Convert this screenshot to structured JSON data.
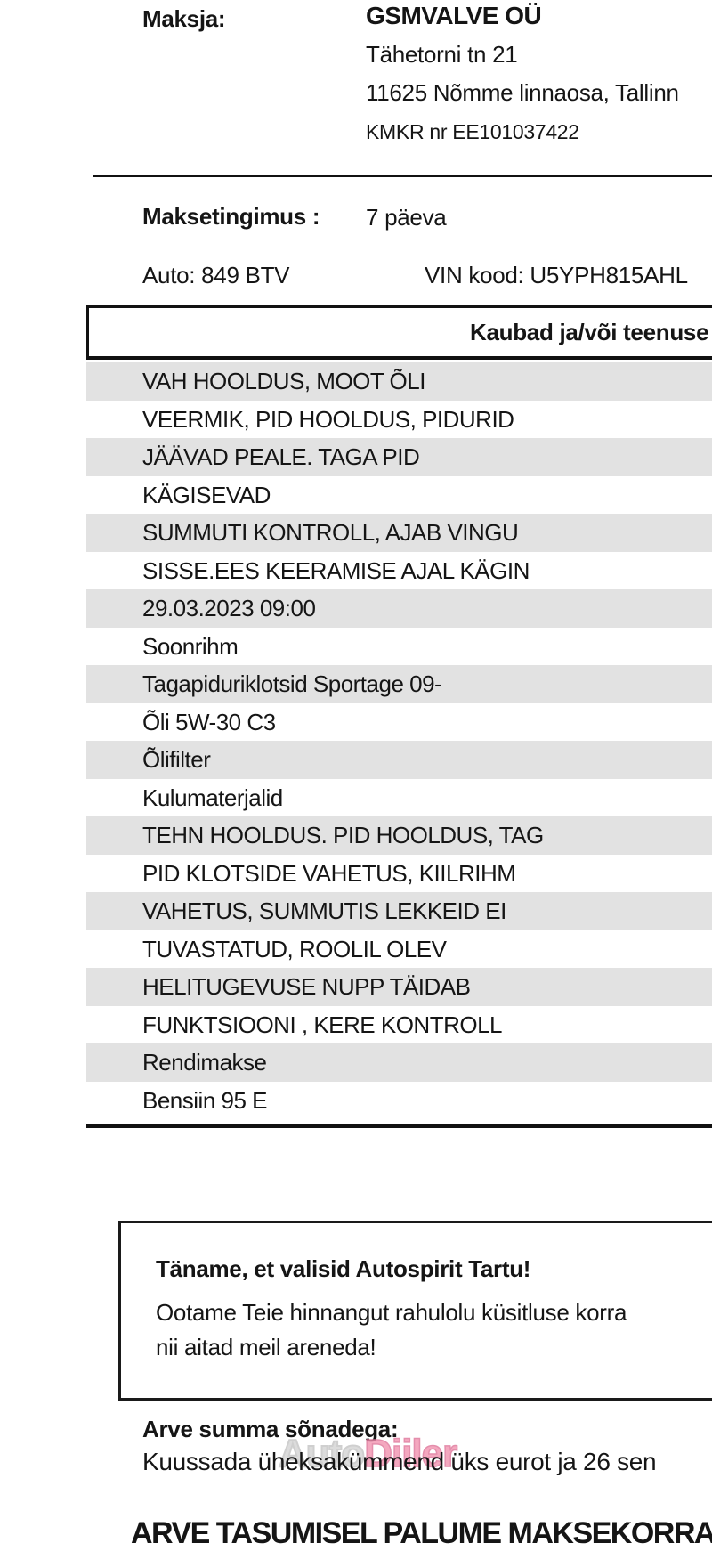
{
  "invoice": {
    "payer_label": "Maksja:",
    "payer_name": "GSMVALVE OÜ",
    "payer_address_line1": "Tähetorni tn 21",
    "payer_address_line2": "11625 Nõmme linnaosa, Tallinn",
    "payer_vat": "KMKR nr EE101037422",
    "payment_terms_label": "Maksetingimus :",
    "payment_terms_value": "7 päeva",
    "vehicle": "Auto: 849 BTV",
    "vin": "VIN kood: U5YPH815AHL",
    "table_header": "Kaubad ja/või teenuse",
    "items": [
      "VAH HOOLDUS, MOOT ÕLI",
      "VEERMIK, PID HOOLDUS, PIDURID",
      "JÄÄVAD PEALE. TAGA PID",
      "KÄGISEVAD",
      "SUMMUTI KONTROLL, AJAB VINGU",
      "SISSE.EES KEERAMISE AJAL KÄGIN",
      "29.03.2023 09:00",
      "Soonrihm",
      "Tagapiduriklotsid Sportage 09-",
      "Õli 5W-30 C3",
      "Õlifilter",
      "Kulumaterjalid",
      "TEHN HOOLDUS. PID HOOLDUS, TAG",
      "PID KLOTSIDE VAHETUS, KIILRIHM",
      "VAHETUS, SUMMUTIS LEKKEID EI",
      "TUVASTATUD, ROOLIL OLEV",
      "HELITUGEVUSE NUPP TÄIDAB",
      "FUNKTSIOONI , KERE KONTROLL",
      "Rendimakse",
      "Bensiin 95 E"
    ],
    "thanks_title": "Täname, et valisid Autospirit Tartu!",
    "thanks_line1": "Ootame Teie hinnangut rahulolu küsitluse korra",
    "thanks_line2": "nii aitad meil areneda!",
    "amount_words_label": "Arve summa sõnadega:",
    "amount_words": "Kuussada üheksakümmend üks eurot ja 26 sen",
    "payment_notice": "ARVE TASUMISEL PALUME MAKSEKORRAL",
    "watermark": {
      "part1": "Auto",
      "part2": "Diiler"
    },
    "colors": {
      "stripe": "#e2e2e2",
      "watermark_pink": "#f39ab5",
      "text": "#151515"
    }
  }
}
